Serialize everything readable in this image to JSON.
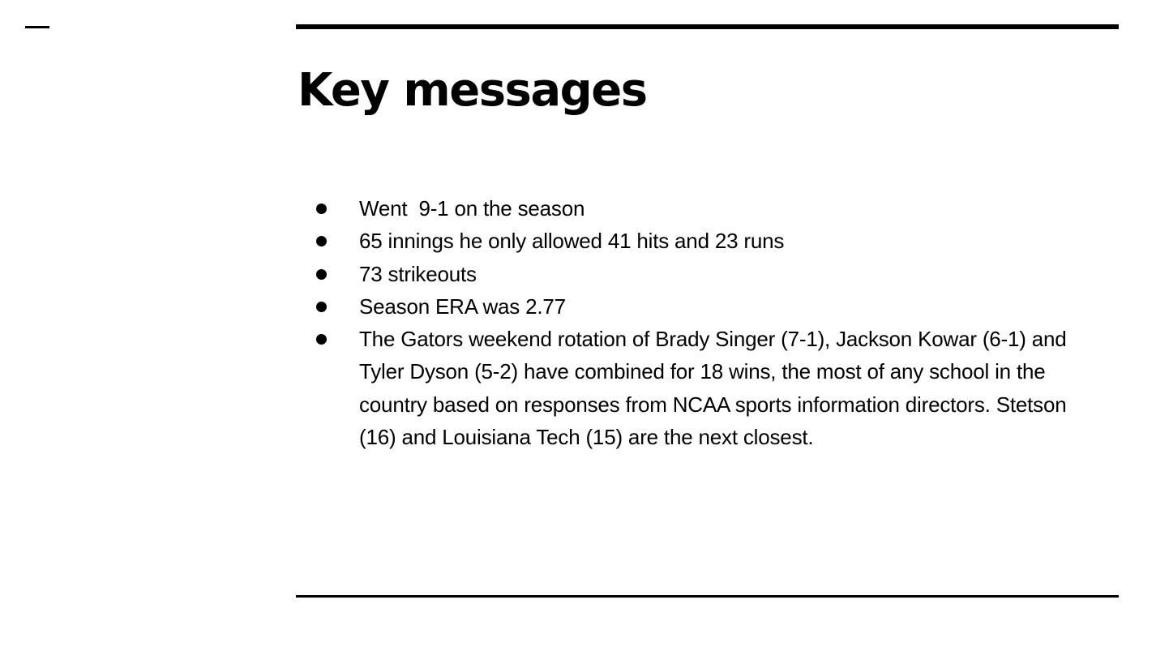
{
  "slide": {
    "title": "Key messages",
    "bullets": [
      "Went  9-1 on the season",
      "65 innings he only allowed 41 hits and 23 runs",
      "73 strikeouts",
      "Season ERA was 2.77",
      "The Gators weekend rotation of Brady Singer (7-1), Jackson Kowar (6-1) and Tyler Dyson (5-2) have combined for 18 wins, the most of any school in the country based on responses from NCAA sports information directors. Stetson (16) and Louisiana Tech (15) are the next closest."
    ]
  },
  "colors": {
    "text": "#000000",
    "background": "#ffffff",
    "rules": "#000000"
  }
}
